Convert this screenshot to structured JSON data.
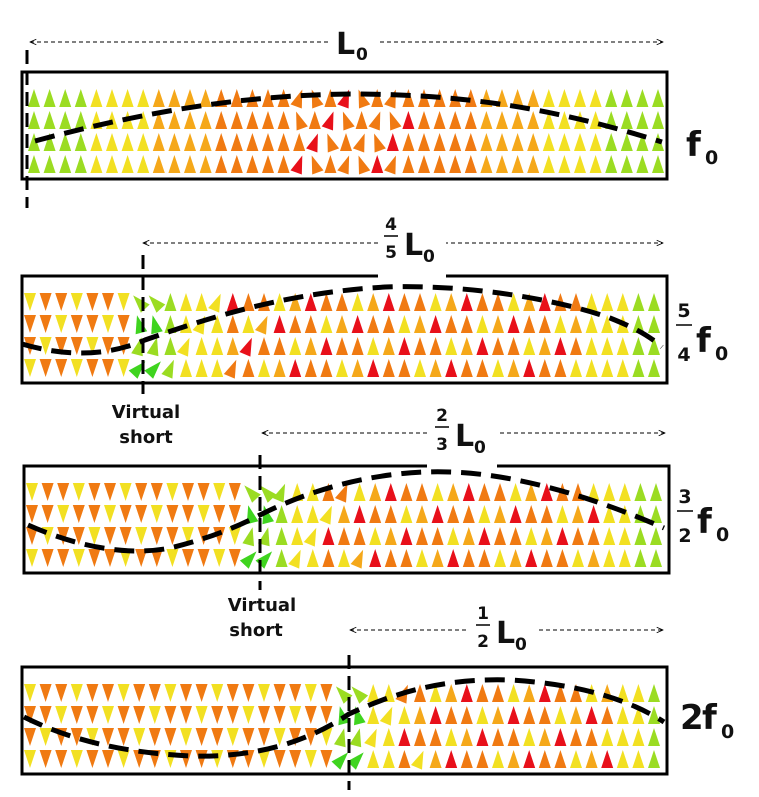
{
  "diagram": {
    "length_label": {
      "main": "L",
      "sub": "0"
    },
    "panels": [
      {
        "id": "p1",
        "length_fraction": {
          "num": "",
          "den": ""
        },
        "freq_fraction": {
          "num": "",
          "den": ""
        },
        "freq_prefix": "",
        "freq_main": "f",
        "freq_sub": "0",
        "virtual_short": []
      },
      {
        "id": "p2",
        "length_fraction": {
          "num": "4",
          "den": "5"
        },
        "freq_fraction": {
          "num": "5",
          "den": "4"
        },
        "freq_prefix": "",
        "freq_main": "f",
        "freq_sub": "0",
        "virtual_short": [
          "Virtual",
          "short"
        ]
      },
      {
        "id": "p3",
        "length_fraction": {
          "num": "2",
          "den": "3"
        },
        "freq_fraction": {
          "num": "3",
          "den": "2"
        },
        "freq_prefix": "",
        "freq_main": "f",
        "freq_sub": "0",
        "virtual_short": [
          "Virtual",
          "short"
        ]
      },
      {
        "id": "p4",
        "length_fraction": {
          "num": "1",
          "den": "2"
        },
        "freq_fraction": {
          "num": "",
          "den": ""
        },
        "freq_prefix": "2",
        "freq_main": "f",
        "freq_sub": "0",
        "virtual_short": []
      }
    ],
    "colors": {
      "frame": "#000000",
      "arrow_red": "#e8101a",
      "arrow_orange": "#f07a12",
      "arrow_amber": "#f5a81a",
      "arrow_yellow": "#f2e022",
      "arrow_green": "#9bdc22",
      "arrow_bright_green": "#3fd41f"
    }
  }
}
